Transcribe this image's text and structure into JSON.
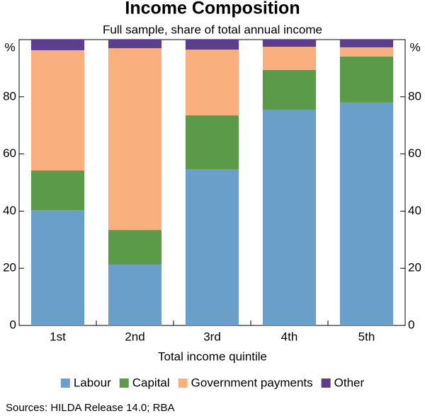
{
  "chart_data": {
    "type": "stacked_bar",
    "title": "Income Composition",
    "subtitle": "Full sample, share of total annual income",
    "x_label": "Total income quintile",
    "y_unit": "%",
    "source": "Sources:   HILDA Release 14.0; RBA",
    "categories": [
      "1st",
      "2nd",
      "3rd",
      "4th",
      "5th"
    ],
    "series": [
      {
        "name": "Labour",
        "color": "#6a9fca",
        "values": [
          40.3,
          21.3,
          54.7,
          75.5,
          78.0
        ]
      },
      {
        "name": "Capital",
        "color": "#5b9a48",
        "values": [
          13.9,
          12.1,
          18.8,
          13.9,
          16.1
        ]
      },
      {
        "name": "Government payments",
        "color": "#f9b07e",
        "values": [
          42.1,
          63.6,
          23.0,
          8.1,
          3.2
        ]
      },
      {
        "name": "Other",
        "color": "#5b3f8c",
        "values": [
          3.7,
          3.0,
          3.5,
          2.5,
          2.7
        ]
      }
    ],
    "ylim": [
      0,
      100
    ],
    "yticks": [
      0,
      20,
      40,
      60,
      80
    ],
    "grid": false
  }
}
